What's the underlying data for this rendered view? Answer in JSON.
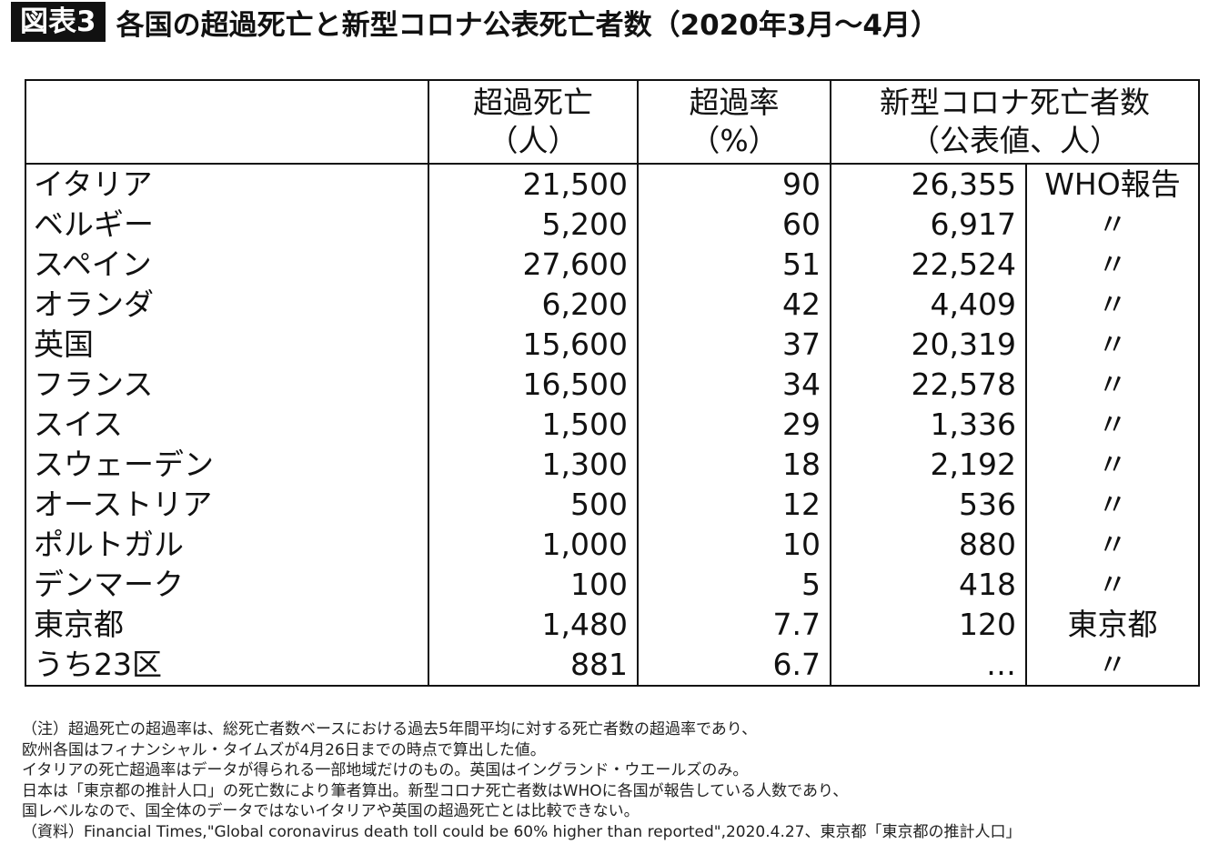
{
  "title": {
    "badge": "図表3",
    "text": "各国の超過死亡と新型コロナ公表死亡者数（2020年3月～4月）"
  },
  "chart_data": {
    "type": "table",
    "columns": [
      {
        "line1": "",
        "line2": ""
      },
      {
        "line1": "超過死亡",
        "line2": "（人）"
      },
      {
        "line1": "超過率",
        "line2": "（%）"
      },
      {
        "line1": "新型コロナ死亡者数",
        "line2": "（公表値、人）"
      }
    ],
    "rows": [
      {
        "name": "イタリア",
        "excess": "21,500",
        "rate": "90",
        "covid": "26,355",
        "source": "WHO報告"
      },
      {
        "name": "ベルギー",
        "excess": "5,200",
        "rate": "60",
        "covid": "6,917",
        "source": "〃"
      },
      {
        "name": "スペイン",
        "excess": "27,600",
        "rate": "51",
        "covid": "22,524",
        "source": "〃"
      },
      {
        "name": "オランダ",
        "excess": "6,200",
        "rate": "42",
        "covid": "4,409",
        "source": "〃"
      },
      {
        "name": "英国",
        "excess": "15,600",
        "rate": "37",
        "covid": "20,319",
        "source": "〃"
      },
      {
        "name": "フランス",
        "excess": "16,500",
        "rate": "34",
        "covid": "22,578",
        "source": "〃"
      },
      {
        "name": "スイス",
        "excess": "1,500",
        "rate": "29",
        "covid": "1,336",
        "source": "〃"
      },
      {
        "name": "スウェーデン",
        "excess": "1,300",
        "rate": "18",
        "covid": "2,192",
        "source": "〃"
      },
      {
        "name": "オーストリア",
        "excess": "500",
        "rate": "12",
        "covid": "536",
        "source": "〃"
      },
      {
        "name": "ポルトガル",
        "excess": "1,000",
        "rate": "10",
        "covid": "880",
        "source": "〃"
      },
      {
        "name": "デンマーク",
        "excess": "100",
        "rate": "5",
        "covid": "418",
        "source": "〃"
      },
      {
        "name": "東京都",
        "excess": "1,480",
        "rate": "7.7",
        "covid": "120",
        "source": "東京都"
      },
      {
        "name": "うち23区",
        "excess": "881",
        "rate": "6.7",
        "covid": "…",
        "source": "〃"
      }
    ]
  },
  "notes": [
    "（注）超過死亡の超過率は、総死亡者数ベースにおける過去5年間平均に対する死亡者数の超過率であり、",
    "欧州各国はフィナンシャル・タイムズが4月26日までの時点で算出した値。",
    "イタリアの死亡超過率はデータが得られる一部地域だけのもの。英国はイングランド・ウエールズのみ。",
    "日本は「東京都の推計人口」の死亡数により筆者算出。新型コロナ死亡者数はWHOに各国が報告している人数であり、",
    "国レベルなので、国全体のデータではないイタリアや英国の超過死亡とは比較できない。",
    "（資料）Financial Times,\"Global coronavirus death toll could be 60% higher than reported\",2020.4.27、東京都「東京都の推計人口」"
  ]
}
